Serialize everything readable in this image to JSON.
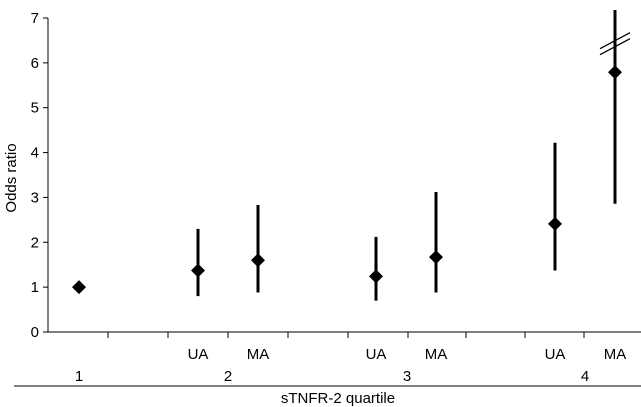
{
  "chart_data": {
    "type": "scatter",
    "subtype": "odds-ratio-with-confidence-intervals",
    "xlabel": "sTNFR-2 quartile",
    "ylabel": "Odds ratio",
    "ylim": [
      0,
      7
    ],
    "yticks": [
      0,
      1,
      2,
      3,
      4,
      5,
      6,
      7
    ],
    "groups": [
      "1",
      "2",
      "3",
      "4"
    ],
    "points": [
      {
        "group": "1",
        "label": "",
        "or": 1.0,
        "lower": null,
        "upper": null,
        "truncated": false
      },
      {
        "group": "2",
        "label": "UA",
        "or": 1.37,
        "lower": 0.8,
        "upper": 2.3,
        "truncated": false
      },
      {
        "group": "2",
        "label": "MA",
        "or": 1.6,
        "lower": 0.88,
        "upper": 2.83,
        "truncated": false
      },
      {
        "group": "3",
        "label": "UA",
        "or": 1.24,
        "lower": 0.7,
        "upper": 2.12,
        "truncated": false
      },
      {
        "group": "3",
        "label": "MA",
        "or": 1.67,
        "lower": 0.88,
        "upper": 3.12,
        "truncated": false
      },
      {
        "group": "4",
        "label": "UA",
        "or": 2.41,
        "lower": 1.37,
        "upper": 4.22,
        "truncated": false
      },
      {
        "group": "4",
        "label": "MA",
        "or": 5.79,
        "lower": 2.86,
        "upper": 7.0,
        "truncated": true
      }
    ],
    "grid": false,
    "legend": "none",
    "colors": {
      "marker": "#000000",
      "axis": "#000000"
    }
  }
}
